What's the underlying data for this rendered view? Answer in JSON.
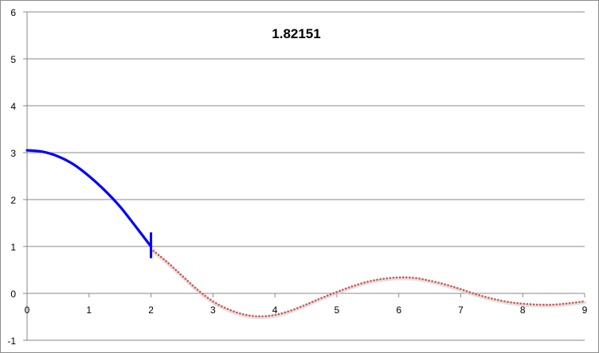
{
  "chart_data": {
    "type": "line",
    "title": "1.82151",
    "xlabel": "",
    "ylabel": "",
    "xlim": [
      0,
      9
    ],
    "ylim": [
      -1,
      6
    ],
    "x_ticks": [
      "0",
      "1",
      "2",
      "3",
      "4",
      "5",
      "6",
      "7",
      "8",
      "9"
    ],
    "y_ticks": [
      "-1",
      "0",
      "1",
      "2",
      "3",
      "4",
      "5",
      "6"
    ],
    "grid": "horizontal",
    "marker": {
      "x": 2,
      "y_from": 0.75,
      "y_to": 1.3,
      "color": "#0000ff"
    },
    "series": [
      {
        "style": "solid",
        "color": "#0000ff",
        "x": [
          0,
          0.25,
          0.5,
          0.75,
          1,
          1.25,
          1.5,
          1.75,
          2
        ],
        "y": [
          3.05,
          3.02,
          2.92,
          2.75,
          2.5,
          2.2,
          1.85,
          1.43,
          1.0
        ]
      },
      {
        "style": "dotted",
        "color": "#d9534f",
        "x": [
          2,
          2.25,
          2.5,
          2.75,
          3,
          3.25,
          3.5,
          3.75,
          4,
          4.25,
          4.5,
          4.75,
          5,
          5.25,
          5.5,
          5.75,
          6,
          6.25,
          6.5,
          6.75,
          7,
          7.25,
          7.5,
          7.75,
          8,
          8.25,
          8.5,
          8.75,
          9
        ],
        "y": [
          0.95,
          0.68,
          0.38,
          0.08,
          -0.17,
          -0.34,
          -0.45,
          -0.49,
          -0.46,
          -0.37,
          -0.24,
          -0.1,
          0.03,
          0.15,
          0.25,
          0.31,
          0.34,
          0.33,
          0.27,
          0.19,
          0.09,
          -0.02,
          -0.11,
          -0.18,
          -0.22,
          -0.24,
          -0.24,
          -0.21,
          -0.17
        ]
      }
    ]
  }
}
